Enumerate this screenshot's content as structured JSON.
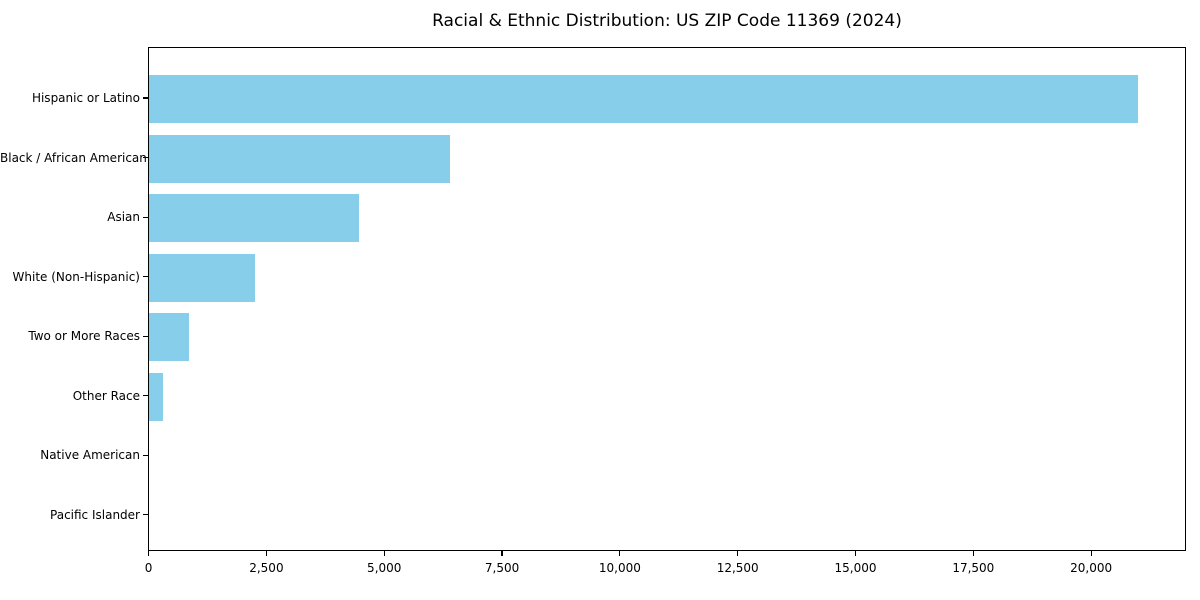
{
  "chart_data": {
    "type": "bar",
    "orientation": "horizontal",
    "title": "Racial & Ethnic Distribution: US ZIP Code 11369 (2024)",
    "categories": [
      "Hispanic or Latino",
      "Black / African American",
      "Asian",
      "White (Non-Hispanic)",
      "Two or More Races",
      "Other Race",
      "Native American",
      "Pacific Islander"
    ],
    "values": [
      21000,
      6400,
      4450,
      2250,
      850,
      300,
      0,
      0
    ],
    "xlabel": "",
    "ylabel": "",
    "xlim": [
      0,
      22000
    ],
    "x_tick_values": [
      0,
      2500,
      5000,
      7500,
      10000,
      12500,
      15000,
      17500,
      20000
    ],
    "x_tick_labels": [
      "0",
      "2,500",
      "5,000",
      "7,500",
      "10,000",
      "12,500",
      "15,000",
      "17,500",
      "20,000"
    ],
    "bar_color": "#87CEEB",
    "spine_color": "#000000",
    "background_color": "#ffffff",
    "grid": false,
    "legend": null
  }
}
